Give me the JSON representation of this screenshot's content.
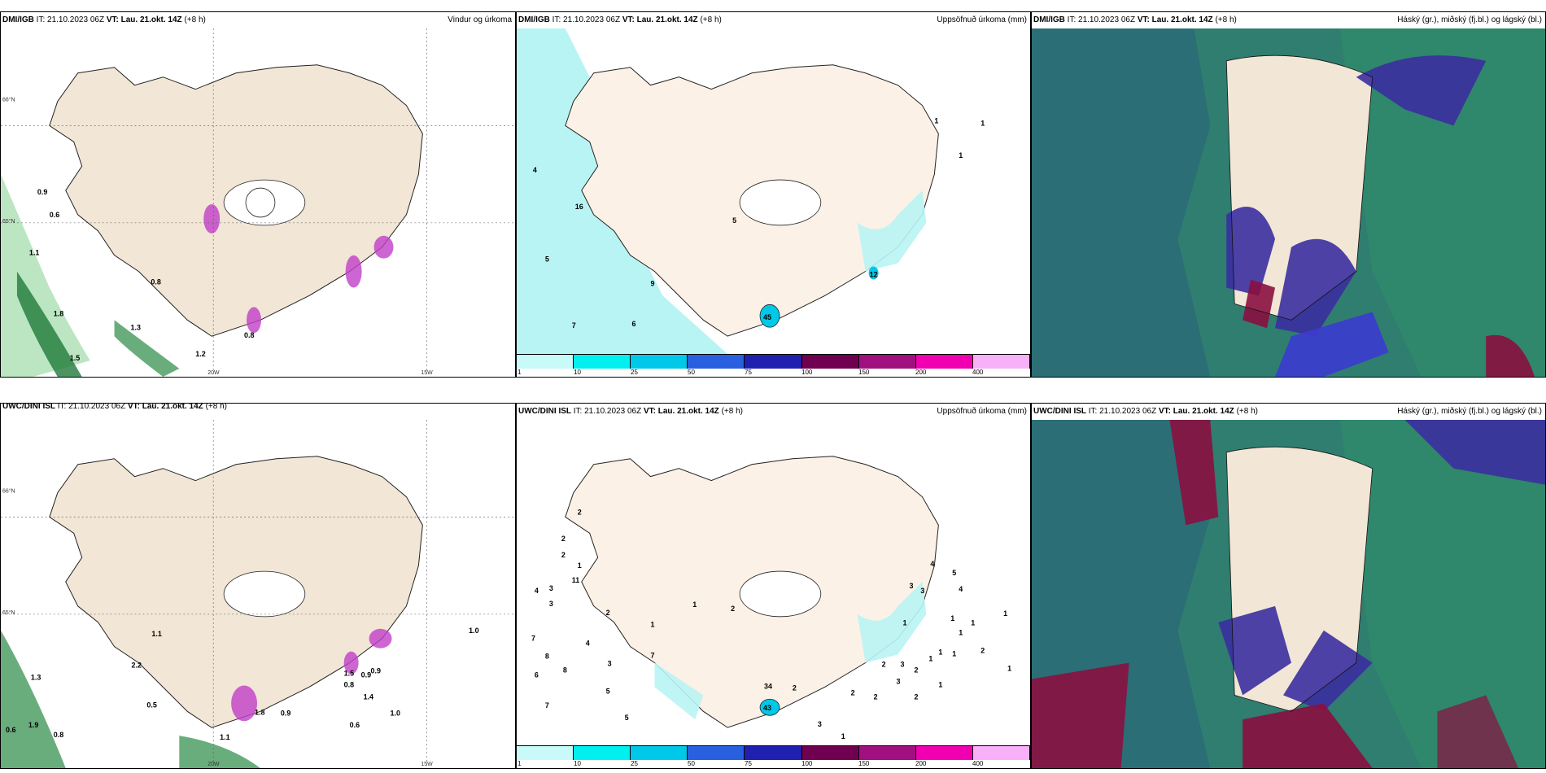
{
  "colors": {
    "land": "#f2e6d6",
    "sea": "#ffffff",
    "precip_light": "#b8f4f4",
    "cloud_high": "#3b2fa0",
    "cloud_mid": "#2a7a6e",
    "cloud_low": "#8a1040"
  },
  "panels": [
    {
      "id": "p1",
      "model": "DMI/IGB",
      "it_label": "IT: 21.10.2023 06Z",
      "vt_label": "VT: Lau. 21.okt. 14Z",
      "lead": "(+8 h)",
      "right_label": "Vindur og úrkoma",
      "labels": [
        "0.9",
        "0.6",
        "1.1",
        "0.8",
        "1.8",
        "1.3",
        "1.2",
        "1.5",
        "0.8"
      ],
      "axes": [
        "66°N",
        "65°N",
        "20W",
        "15W"
      ]
    },
    {
      "id": "p2",
      "model": "DMI/IGB",
      "it_label": "IT: 21.10.2023 06Z",
      "vt_label": "VT: Lau. 21.okt. 14Z",
      "lead": "(+8 h)",
      "right_label": "Uppsöfnuð úrkoma (mm)",
      "labels": [
        "4",
        "5",
        "7",
        "6",
        "9",
        "16",
        "5",
        "1",
        "1",
        "1",
        "12",
        "45"
      ]
    },
    {
      "id": "p3",
      "model": "DMI/IGB",
      "it_label": "IT: 21.10.2023 06Z",
      "vt_label": "VT: Lau. 21.okt. 14Z",
      "lead": "(+8 h)",
      "right_label": "Háský (gr.), miðský (fj.bl.) og lágský (bl.)"
    },
    {
      "id": "p4",
      "model": "UWC/DINI ISL",
      "it_label": "IT: 21.10.2023 06Z",
      "vt_label": "VT: Lau. 21.okt. 14Z",
      "lead": "(+8 h)",
      "right_label": "",
      "labels": [
        "1.1",
        "2.2",
        "1.3",
        "0.5",
        "0.6",
        "1.9",
        "0.8",
        "1.1",
        "1.8",
        "0.9",
        "1.5",
        "0.8",
        "0.9",
        "1.0",
        "0.9",
        "0.6",
        "1.4",
        "1.0"
      ],
      "axes": [
        "66°N",
        "65°N",
        "20W",
        "15W"
      ]
    },
    {
      "id": "p5",
      "model": "UWC/DINI ISL",
      "it_label": "IT: 21.10.2023 06Z",
      "vt_label": "VT: Lau. 21.okt. 14Z",
      "lead": "(+8 h)",
      "right_label": "Uppsöfnuð úrkoma (mm)",
      "labels": [
        "2",
        "2",
        "2",
        "1",
        "4",
        "3",
        "3",
        "11",
        "2",
        "7",
        "4",
        "8",
        "6",
        "8",
        "3",
        "5",
        "7",
        "5",
        "1",
        "7",
        "2",
        "1",
        "34",
        "43",
        "2",
        "3",
        "1",
        "2",
        "2",
        "1",
        "3",
        "3",
        "4",
        "5",
        "4",
        "1",
        "1",
        "1",
        "1",
        "2",
        "1",
        "2",
        "3",
        "1",
        "1",
        "2",
        "1",
        "3",
        "2",
        "1"
      ]
    },
    {
      "id": "p6",
      "model": "UWC/DINI ISL",
      "it_label": "IT: 21.10.2023 06Z",
      "vt_label": "VT: Lau. 21.okt. 14Z",
      "lead": "(+8 h)",
      "right_label": "Háský (gr.), miðský (fj.bl.) og lágský (bl.)"
    }
  ],
  "legend": {
    "ticks": [
      "1",
      "10",
      "25",
      "50",
      "75",
      "100",
      "150",
      "200",
      "400"
    ],
    "colors": [
      "#c8fafa",
      "#00f0f0",
      "#00c8e8",
      "#2860e0",
      "#2020b0",
      "#700050",
      "#a01080",
      "#f000b0",
      "#f8b0f8"
    ]
  }
}
